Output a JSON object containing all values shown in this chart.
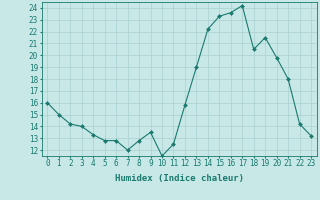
{
  "x": [
    0,
    1,
    2,
    3,
    4,
    5,
    6,
    7,
    8,
    9,
    10,
    11,
    12,
    13,
    14,
    15,
    16,
    17,
    18,
    19,
    20,
    21,
    22,
    23
  ],
  "y": [
    16,
    15,
    14.2,
    14,
    13.3,
    12.8,
    12.8,
    12,
    12.8,
    13.5,
    11.5,
    12.5,
    15.8,
    19,
    22.2,
    23.3,
    23.6,
    24.2,
    20.5,
    21.5,
    19.8,
    18,
    14.2,
    13.2
  ],
  "line_color": "#1a7a6e",
  "marker_color": "#1a7a6e",
  "bg_color": "#c8e8e8",
  "grid_color": "#aacfcf",
  "xlabel": "Humidex (Indice chaleur)",
  "xlim": [
    -0.5,
    23.5
  ],
  "ylim": [
    11.5,
    24.5
  ],
  "yticks": [
    12,
    13,
    14,
    15,
    16,
    17,
    18,
    19,
    20,
    21,
    22,
    23,
    24
  ],
  "xticks": [
    0,
    1,
    2,
    3,
    4,
    5,
    6,
    7,
    8,
    9,
    10,
    11,
    12,
    13,
    14,
    15,
    16,
    17,
    18,
    19,
    20,
    21,
    22,
    23
  ],
  "xlabel_fontsize": 6.5,
  "tick_fontsize": 5.5
}
